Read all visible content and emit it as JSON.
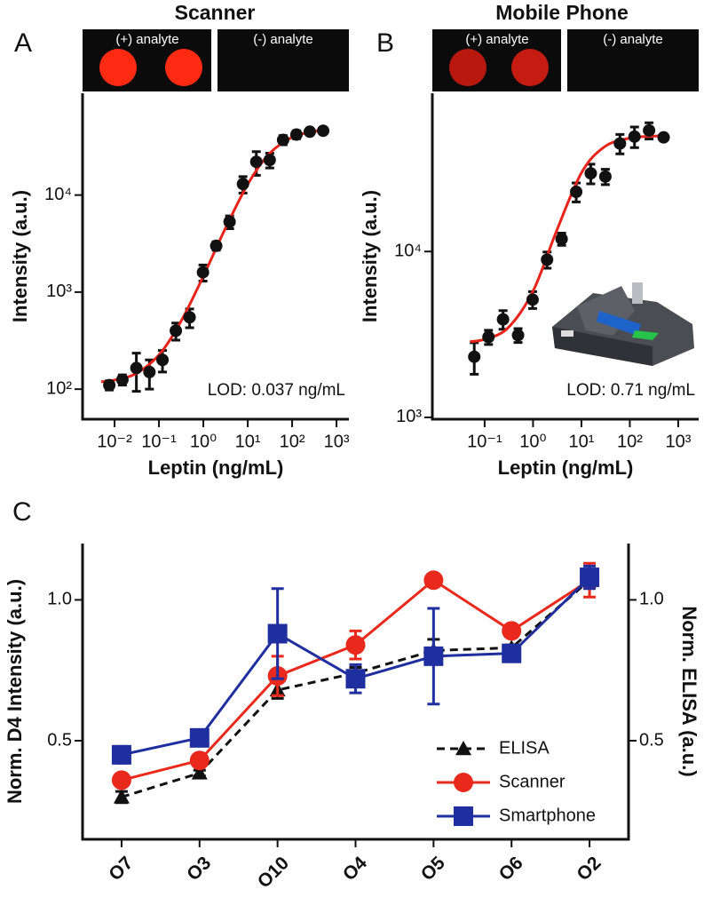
{
  "chart_data": [
    {
      "type": "scatter",
      "letter": "A",
      "title": "Scanner",
      "image_labels": [
        "(+) analyte",
        "(-) analyte"
      ],
      "x_label": "Leptin (ng/mL)",
      "y_label": "Intensity (a.u.)",
      "annotation": "LOD: 0.037 ng/mL",
      "log_x": true,
      "log_y": true,
      "color": "#111111",
      "x": [
        0.0076,
        0.015,
        0.031,
        0.061,
        0.12,
        0.24,
        0.49,
        0.98,
        1.95,
        3.9,
        7.8,
        15.6,
        31.25,
        62.5,
        125,
        250,
        500
      ],
      "values": [
        110,
        125,
        165,
        150,
        200,
        400,
        550,
        1600,
        3000,
        5300,
        13000,
        22000,
        23000,
        37000,
        42000,
        45000,
        46000
      ],
      "errors": [
        12,
        15,
        70,
        50,
        50,
        80,
        120,
        300,
        300,
        800,
        2500,
        6000,
        4000,
        4000,
        4000,
        3000,
        2000
      ],
      "fit": {
        "color": "#e8231a",
        "x": [
          0.005,
          0.01,
          0.03,
          0.1,
          0.3,
          1,
          3,
          10,
          30,
          100,
          300,
          500
        ],
        "values": [
          119,
          124,
          144,
          225,
          482,
          1461,
          4353,
          12915,
          26455,
          39435,
          45075,
          46295
        ]
      },
      "xlim": [
        0.0019,
        1900
      ],
      "ylim": [
        49,
        112000
      ],
      "xticks": [
        {
          "value": 0.01,
          "label": "10⁻²"
        },
        {
          "value": 0.1,
          "label": "10⁻¹"
        },
        {
          "value": 1,
          "label": "10⁰"
        },
        {
          "value": 10,
          "label": "10¹"
        },
        {
          "value": 100,
          "label": "10²"
        },
        {
          "value": 1000,
          "label": "10³"
        }
      ],
      "yticks": [
        {
          "value": 100,
          "label": "10²"
        },
        {
          "value": 1000,
          "label": "10³"
        },
        {
          "value": 10000,
          "label": "10⁴"
        }
      ]
    },
    {
      "type": "scatter",
      "letter": "B",
      "title": "Mobile Phone",
      "image_labels": [
        "(+) analyte",
        "(-) analyte"
      ],
      "x_label": "Leptin (ng/mL)",
      "y_label": "Intensity (a.u.)",
      "annotation": "LOD: 0.71 ng/mL",
      "log_x": true,
      "log_y": true,
      "color": "#111111",
      "x": [
        0.061,
        0.12,
        0.24,
        0.49,
        0.98,
        1.95,
        3.9,
        7.8,
        15.6,
        31.25,
        62.5,
        125,
        250,
        500
      ],
      "values": [
        2320,
        3050,
        3900,
        3130,
        5130,
        8930,
        11900,
        22900,
        29600,
        28300,
        44800,
        49300,
        53700,
        48800
      ],
      "errors": [
        500,
        300,
        500,
        300,
        600,
        1000,
        1000,
        3000,
        4000,
        3000,
        6000,
        7000,
        6000,
        2000
      ],
      "fit": {
        "color": "#e8231a",
        "x": [
          0.05,
          0.1,
          0.3,
          1,
          3,
          10,
          30,
          100,
          300,
          500
        ],
        "values": [
          2864,
          2958,
          3452,
          5768,
          13106,
          29800,
          42800,
          48294,
          49584,
          49784
        ]
      },
      "xlim": [
        0.0083,
        2650
      ],
      "ylim": [
        975,
        90000
      ],
      "xticks": [
        {
          "value": 0.1,
          "label": "10⁻¹"
        },
        {
          "value": 1,
          "label": "10⁰"
        },
        {
          "value": 10,
          "label": "10¹"
        },
        {
          "value": 100,
          "label": "10²"
        },
        {
          "value": 1000,
          "label": "10³"
        }
      ],
      "yticks": [
        {
          "value": 1000,
          "label": "10³"
        },
        {
          "value": 10000,
          "label": "10⁴"
        }
      ]
    },
    {
      "type": "line",
      "letter": "C",
      "y_label": "Norm. D4 Intensity (a.u.)",
      "y2_label": "Norm. ELISA (a.u.)",
      "categories": [
        "O7",
        "O3",
        "O10",
        "O4",
        "O5",
        "O6",
        "O2"
      ],
      "series": [
        {
          "name": "ELISA",
          "color": "#111111",
          "marker": "triangle",
          "dash": true,
          "axis": "y2",
          "values": [
            0.3,
            0.385,
            0.68,
            0.74,
            0.82,
            0.83,
            1.07
          ],
          "errors": [
            0.02,
            0.01,
            0.03,
            0.02,
            0.04,
            0.01,
            0.02
          ]
        },
        {
          "name": "Scanner",
          "color": "#e8291c",
          "marker": "circle",
          "dash": false,
          "values": [
            0.36,
            0.43,
            0.73,
            0.84,
            1.07,
            0.89,
            1.07
          ],
          "errors": [
            0.02,
            0.02,
            0.07,
            0.05,
            0.01,
            0.01,
            0.06
          ]
        },
        {
          "name": "Smartphone",
          "color": "#1f2f9f",
          "marker": "square",
          "dash": false,
          "values": [
            0.45,
            0.51,
            0.88,
            0.72,
            0.8,
            0.81,
            1.08
          ],
          "errors": [
            0.03,
            0.02,
            0.16,
            0.05,
            0.17,
            0.02,
            0.04
          ]
        }
      ],
      "ylim": [
        0.15,
        1.2
      ],
      "yticks": [
        0.5,
        {
          "value": 1,
          "label": "1.0"
        }
      ],
      "y2lim": [
        0.15,
        1.2
      ],
      "y2ticks": [
        0.5,
        {
          "value": 1,
          "label": "1.0"
        }
      ]
    }
  ]
}
